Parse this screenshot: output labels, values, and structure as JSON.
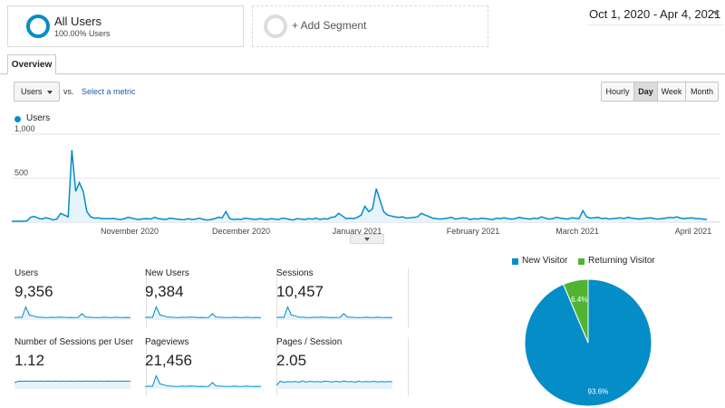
{
  "segments": {
    "all_users": {
      "title": "All Users",
      "subtitle": "100.00% Users"
    },
    "add_segment_label": "+ Add Segment"
  },
  "date_range": "Oct 1, 2020 - Apr 4, 2021",
  "tabs": {
    "overview": "Overview"
  },
  "toolbar": {
    "metric_select": "Users",
    "vs_label": "vs.",
    "select_metric_link": "Select a metric",
    "granularity": [
      {
        "label": "Hourly",
        "active": false
      },
      {
        "label": "Day",
        "active": true
      },
      {
        "label": "Week",
        "active": false
      },
      {
        "label": "Month",
        "active": false
      }
    ]
  },
  "legend": {
    "series_label": "Users"
  },
  "colors": {
    "primary": "#058dc7",
    "secondary": "#50b432",
    "fill": "#e7f3fa"
  },
  "chart_data": {
    "type": "area",
    "series": [
      {
        "name": "Users",
        "values": [
          10,
          10,
          10,
          10,
          12,
          55,
          65,
          45,
          35,
          50,
          40,
          25,
          35,
          100,
          80,
          60,
          820,
          350,
          450,
          350,
          120,
          60,
          45,
          50,
          40,
          40,
          38,
          42,
          35,
          30,
          40,
          55,
          45,
          35,
          30,
          38,
          40,
          35,
          55,
          40,
          35,
          30,
          45,
          40,
          35,
          30,
          28,
          40,
          30,
          35,
          45,
          30,
          25,
          30,
          40,
          55,
          50,
          120,
          40,
          30,
          35,
          30,
          45,
          40,
          35,
          30,
          40,
          35,
          30,
          40,
          35,
          30,
          45,
          40,
          30,
          25,
          40,
          35,
          30,
          40,
          35,
          45,
          30,
          40,
          35,
          55,
          60,
          100,
          70,
          40,
          45,
          40,
          55,
          80,
          180,
          120,
          150,
          380,
          250,
          120,
          80,
          70,
          60,
          55,
          60,
          45,
          50,
          55,
          60,
          100,
          80,
          65,
          45,
          40,
          35,
          40,
          45,
          55,
          35,
          40,
          50,
          45,
          30,
          40,
          35,
          45,
          40,
          35,
          30,
          45,
          40,
          50,
          40,
          35,
          40,
          55,
          45,
          40,
          35,
          45,
          40,
          60,
          45,
          35,
          40,
          55,
          45,
          40,
          35,
          50,
          45,
          40,
          130,
          60,
          45,
          50,
          55,
          40,
          45,
          35,
          40,
          45,
          50,
          40,
          55,
          45,
          40,
          35,
          40,
          45,
          50,
          40,
          35,
          40,
          45,
          55,
          50,
          60,
          45,
          40,
          45,
          50,
          40,
          40,
          35,
          30
        ]
      }
    ],
    "x_tick_labels": [
      "November 2020",
      "December 2020",
      "January 2021",
      "February 2021",
      "March 2021",
      "April 2021"
    ],
    "y_tick_labels": [
      "1,000",
      "500"
    ],
    "ylim": [
      0,
      1000
    ]
  },
  "scorecards": [
    {
      "label": "Users",
      "value": "9,356",
      "spark": [
        12,
        14,
        13,
        90,
        30,
        25,
        15,
        14,
        13,
        12,
        14,
        13,
        15,
        14,
        12,
        13,
        12,
        13,
        40,
        15,
        14,
        13,
        12,
        13,
        14,
        13,
        12,
        14,
        13,
        12,
        13,
        12
      ]
    },
    {
      "label": "New Users",
      "value": "9,384",
      "spark": [
        12,
        14,
        13,
        90,
        30,
        25,
        15,
        14,
        13,
        12,
        14,
        13,
        15,
        14,
        12,
        13,
        12,
        13,
        40,
        15,
        14,
        13,
        12,
        13,
        14,
        13,
        12,
        14,
        13,
        12,
        13,
        12
      ]
    },
    {
      "label": "Sessions",
      "value": "10,457",
      "spark": [
        12,
        14,
        13,
        90,
        30,
        25,
        15,
        14,
        13,
        12,
        14,
        13,
        15,
        14,
        12,
        13,
        12,
        13,
        40,
        15,
        14,
        13,
        12,
        13,
        14,
        13,
        12,
        14,
        13,
        12,
        13,
        12
      ]
    },
    {
      "label": "Number of Sessions per User",
      "value": "1.12",
      "spark": [
        40,
        50,
        50,
        52,
        50,
        51,
        50,
        52,
        50,
        51,
        50,
        52,
        50,
        51,
        50,
        52,
        50,
        51,
        50,
        52,
        50,
        51,
        50,
        52,
        50,
        51,
        50,
        52,
        50,
        51,
        50,
        52
      ]
    },
    {
      "label": "Pageviews",
      "value": "21,456",
      "spark": [
        12,
        14,
        13,
        90,
        30,
        25,
        15,
        14,
        13,
        12,
        14,
        13,
        15,
        14,
        12,
        13,
        12,
        13,
        40,
        15,
        14,
        13,
        12,
        13,
        14,
        13,
        12,
        14,
        13,
        12,
        13,
        12
      ]
    },
    {
      "label": "Pages / Session",
      "value": "2.05",
      "spark": [
        20,
        50,
        42,
        47,
        45,
        48,
        43,
        52,
        44,
        50,
        46,
        49,
        44,
        51,
        47,
        45,
        50,
        44,
        52,
        46,
        49,
        43,
        51,
        45,
        48,
        46,
        50,
        44,
        49,
        45,
        48,
        46
      ]
    }
  ],
  "pie": {
    "legend": [
      {
        "label": "New Visitor",
        "color": "#058dc7"
      },
      {
        "label": "Returning Visitor",
        "color": "#50b432"
      }
    ],
    "chart_data": {
      "type": "pie",
      "labels": [
        "New Visitor",
        "Returning Visitor"
      ],
      "values": [
        93.6,
        6.4
      ],
      "value_labels": [
        "93.6%",
        "6.4%"
      ]
    }
  }
}
